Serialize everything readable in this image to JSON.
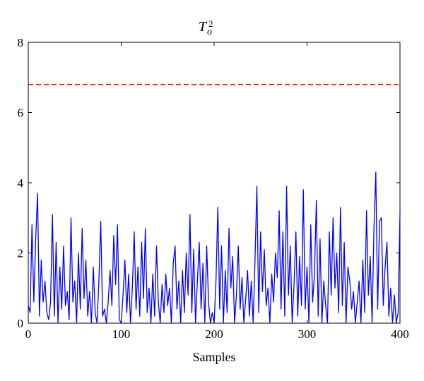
{
  "chart_data": {
    "type": "line",
    "title": {
      "base": "T",
      "sub": "o",
      "sup": "2"
    },
    "xlabel": "Samples",
    "ylabel": "",
    "xlim": [
      0,
      400
    ],
    "ylim": [
      0,
      8
    ],
    "xticks": [
      0,
      100,
      200,
      300,
      400
    ],
    "yticks": [
      0,
      2,
      4,
      6,
      8
    ],
    "xtick_labels": [
      "0",
      "100",
      "200",
      "300",
      "400"
    ],
    "ytick_labels": [
      "0",
      "2",
      "4",
      "6",
      "8"
    ],
    "grid": false,
    "legend": "none",
    "series": [
      {
        "color": "#0000ff",
        "style": "solid",
        "points": [
          [
            0,
            0.5
          ],
          [
            2,
            0.3
          ],
          [
            4,
            2.8
          ],
          [
            6,
            0.6
          ],
          [
            8,
            2.4
          ],
          [
            10,
            3.7
          ],
          [
            12,
            0.2
          ],
          [
            14,
            1.8
          ],
          [
            16,
            0.6
          ],
          [
            18,
            1.2
          ],
          [
            20,
            0.3
          ],
          [
            22,
            0.1
          ],
          [
            24,
            0.6
          ],
          [
            26,
            3.1
          ],
          [
            28,
            0.2
          ],
          [
            30,
            2.3
          ],
          [
            32,
            0.0
          ],
          [
            34,
            1.6
          ],
          [
            36,
            0.4
          ],
          [
            38,
            2.2
          ],
          [
            40,
            0.5
          ],
          [
            42,
            0.9
          ],
          [
            44,
            0.1
          ],
          [
            46,
            3.0
          ],
          [
            48,
            0.6
          ],
          [
            50,
            1.2
          ],
          [
            52,
            0.0
          ],
          [
            54,
            2.0
          ],
          [
            56,
            0.4
          ],
          [
            58,
            2.7
          ],
          [
            60,
            0.7
          ],
          [
            62,
            1.8
          ],
          [
            64,
            0.2
          ],
          [
            66,
            0.9
          ],
          [
            68,
            0.0
          ],
          [
            70,
            1.6
          ],
          [
            72,
            0.3
          ],
          [
            74,
            0.0
          ],
          [
            76,
            1.2
          ],
          [
            78,
            2.9
          ],
          [
            80,
            0.2
          ],
          [
            82,
            0.4
          ],
          [
            84,
            0.0
          ],
          [
            86,
            0.6
          ],
          [
            88,
            1.5
          ],
          [
            90,
            0.5
          ],
          [
            92,
            2.5
          ],
          [
            94,
            1.1
          ],
          [
            96,
            2.8
          ],
          [
            98,
            0.1
          ],
          [
            100,
            0.0
          ],
          [
            102,
            0.8
          ],
          [
            104,
            1.8
          ],
          [
            106,
            0.3
          ],
          [
            108,
            1.4
          ],
          [
            110,
            0.0
          ],
          [
            112,
            1.0
          ],
          [
            114,
            2.6
          ],
          [
            116,
            0.4
          ],
          [
            118,
            1.6
          ],
          [
            120,
            0.2
          ],
          [
            122,
            2.3
          ],
          [
            124,
            0.7
          ],
          [
            126,
            2.7
          ],
          [
            128,
            0.3
          ],
          [
            130,
            1.0
          ],
          [
            132,
            0.0
          ],
          [
            134,
            1.4
          ],
          [
            136,
            0.2
          ],
          [
            138,
            2.2
          ],
          [
            140,
            0.6
          ],
          [
            142,
            0.0
          ],
          [
            144,
            1.1
          ],
          [
            146,
            0.3
          ],
          [
            148,
            1.4
          ],
          [
            150,
            0.5
          ],
          [
            152,
            1.0
          ],
          [
            154,
            0.0
          ],
          [
            156,
            1.7
          ],
          [
            158,
            2.2
          ],
          [
            160,
            0.4
          ],
          [
            162,
            1.2
          ],
          [
            164,
            0.0
          ],
          [
            166,
            1.5
          ],
          [
            168,
            0.3
          ],
          [
            170,
            2.0
          ],
          [
            172,
            0.8
          ],
          [
            174,
            3.1
          ],
          [
            176,
            0.3
          ],
          [
            178,
            2.1
          ],
          [
            180,
            0.0
          ],
          [
            182,
            1.2
          ],
          [
            184,
            2.3
          ],
          [
            186,
            0.4
          ],
          [
            188,
            1.7
          ],
          [
            190,
            0.0
          ],
          [
            192,
            2.2
          ],
          [
            194,
            0.6
          ],
          [
            196,
            0.0
          ],
          [
            198,
            0.3
          ],
          [
            200,
            0.0
          ],
          [
            202,
            1.2
          ],
          [
            204,
            3.3
          ],
          [
            206,
            0.4
          ],
          [
            208,
            2.2
          ],
          [
            210,
            0.0
          ],
          [
            212,
            1.5
          ],
          [
            214,
            0.3
          ],
          [
            216,
            2.7
          ],
          [
            218,
            1.0
          ],
          [
            220,
            1.9
          ],
          [
            222,
            0.0
          ],
          [
            224,
            0.8
          ],
          [
            226,
            2.2
          ],
          [
            228,
            0.4
          ],
          [
            230,
            1.3
          ],
          [
            232,
            0.0
          ],
          [
            234,
            0.7
          ],
          [
            236,
            1.5
          ],
          [
            238,
            0.2
          ],
          [
            240,
            1.2
          ],
          [
            242,
            0.0
          ],
          [
            244,
            1.8
          ],
          [
            246,
            3.9
          ],
          [
            248,
            0.3
          ],
          [
            250,
            2.6
          ],
          [
            252,
            0.9
          ],
          [
            254,
            2.1
          ],
          [
            256,
            0.5
          ],
          [
            258,
            1.0
          ],
          [
            260,
            0.0
          ],
          [
            262,
            1.4
          ],
          [
            264,
            0.6
          ],
          [
            266,
            2.0
          ],
          [
            268,
            1.3
          ],
          [
            270,
            3.2
          ],
          [
            272,
            0.4
          ],
          [
            274,
            2.6
          ],
          [
            276,
            0.2
          ],
          [
            278,
            3.9
          ],
          [
            280,
            0.8
          ],
          [
            282,
            2.2
          ],
          [
            284,
            0.0
          ],
          [
            286,
            1.1
          ],
          [
            288,
            2.6
          ],
          [
            290,
            0.2
          ],
          [
            292,
            1.9
          ],
          [
            294,
            0.5
          ],
          [
            296,
            3.8
          ],
          [
            298,
            0.4
          ],
          [
            300,
            1.6
          ],
          [
            302,
            0.0
          ],
          [
            304,
            2.8
          ],
          [
            306,
            0.6
          ],
          [
            308,
            1.4
          ],
          [
            310,
            3.5
          ],
          [
            312,
            0.2
          ],
          [
            314,
            2.4
          ],
          [
            316,
            0.0
          ],
          [
            318,
            1.2
          ],
          [
            320,
            0.5
          ],
          [
            322,
            0.0
          ],
          [
            324,
            2.6
          ],
          [
            326,
            0.8
          ],
          [
            328,
            3.0
          ],
          [
            330,
            1.0
          ],
          [
            332,
            2.0
          ],
          [
            334,
            0.3
          ],
          [
            336,
            3.3
          ],
          [
            338,
            0.5
          ],
          [
            340,
            2.3
          ],
          [
            342,
            0.0
          ],
          [
            344,
            1.6
          ],
          [
            346,
            1.2
          ],
          [
            348,
            0.4
          ],
          [
            350,
            0.9
          ],
          [
            352,
            0.0
          ],
          [
            354,
            0.6
          ],
          [
            356,
            1.2
          ],
          [
            358,
            0.0
          ],
          [
            360,
            1.8
          ],
          [
            362,
            0.3
          ],
          [
            364,
            3.2
          ],
          [
            366,
            0.8
          ],
          [
            368,
            1.9
          ],
          [
            370,
            0.0
          ],
          [
            372,
            2.7
          ],
          [
            374,
            4.3
          ],
          [
            376,
            0.4
          ],
          [
            378,
            2.9
          ],
          [
            380,
            3.0
          ],
          [
            382,
            0.5
          ],
          [
            384,
            1.6
          ],
          [
            386,
            2.3
          ],
          [
            388,
            0.2
          ],
          [
            390,
            1.0
          ],
          [
            392,
            0.0
          ],
          [
            394,
            0.8
          ],
          [
            396,
            0.0
          ],
          [
            398,
            0.3
          ],
          [
            400,
            3.1
          ]
        ]
      },
      {
        "color": "#ff0000",
        "style": "dashed",
        "points": [
          [
            0,
            6.8
          ],
          [
            400,
            6.8
          ]
        ]
      }
    ]
  }
}
